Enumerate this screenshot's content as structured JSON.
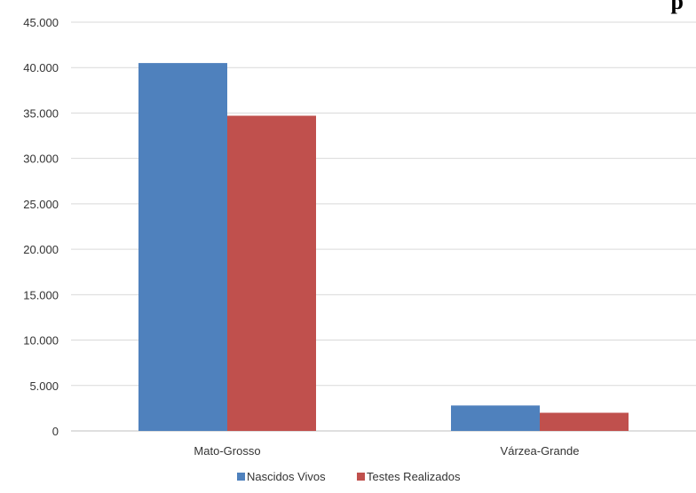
{
  "chart_data": {
    "type": "bar",
    "title_fragment": "p",
    "categories": [
      "Mato-Grosso",
      "Várzea-Grande"
    ],
    "series": [
      {
        "name": "Nascidos Vivos",
        "values": [
          40500,
          2800
        ],
        "color": "#4f81bd"
      },
      {
        "name": "Testes Realizados",
        "values": [
          34700,
          2000
        ],
        "color": "#c0504d"
      }
    ],
    "ylim": [
      0,
      45000
    ],
    "yticks": [
      0,
      5000,
      10000,
      15000,
      20000,
      25000,
      30000,
      35000,
      40000,
      45000
    ],
    "ytick_labels": [
      "0",
      "5.000",
      "10.000",
      "15.000",
      "20.000",
      "25.000",
      "30.000",
      "35.000",
      "40.000",
      "45.000"
    ],
    "grid": true,
    "legend_position": "bottom"
  }
}
